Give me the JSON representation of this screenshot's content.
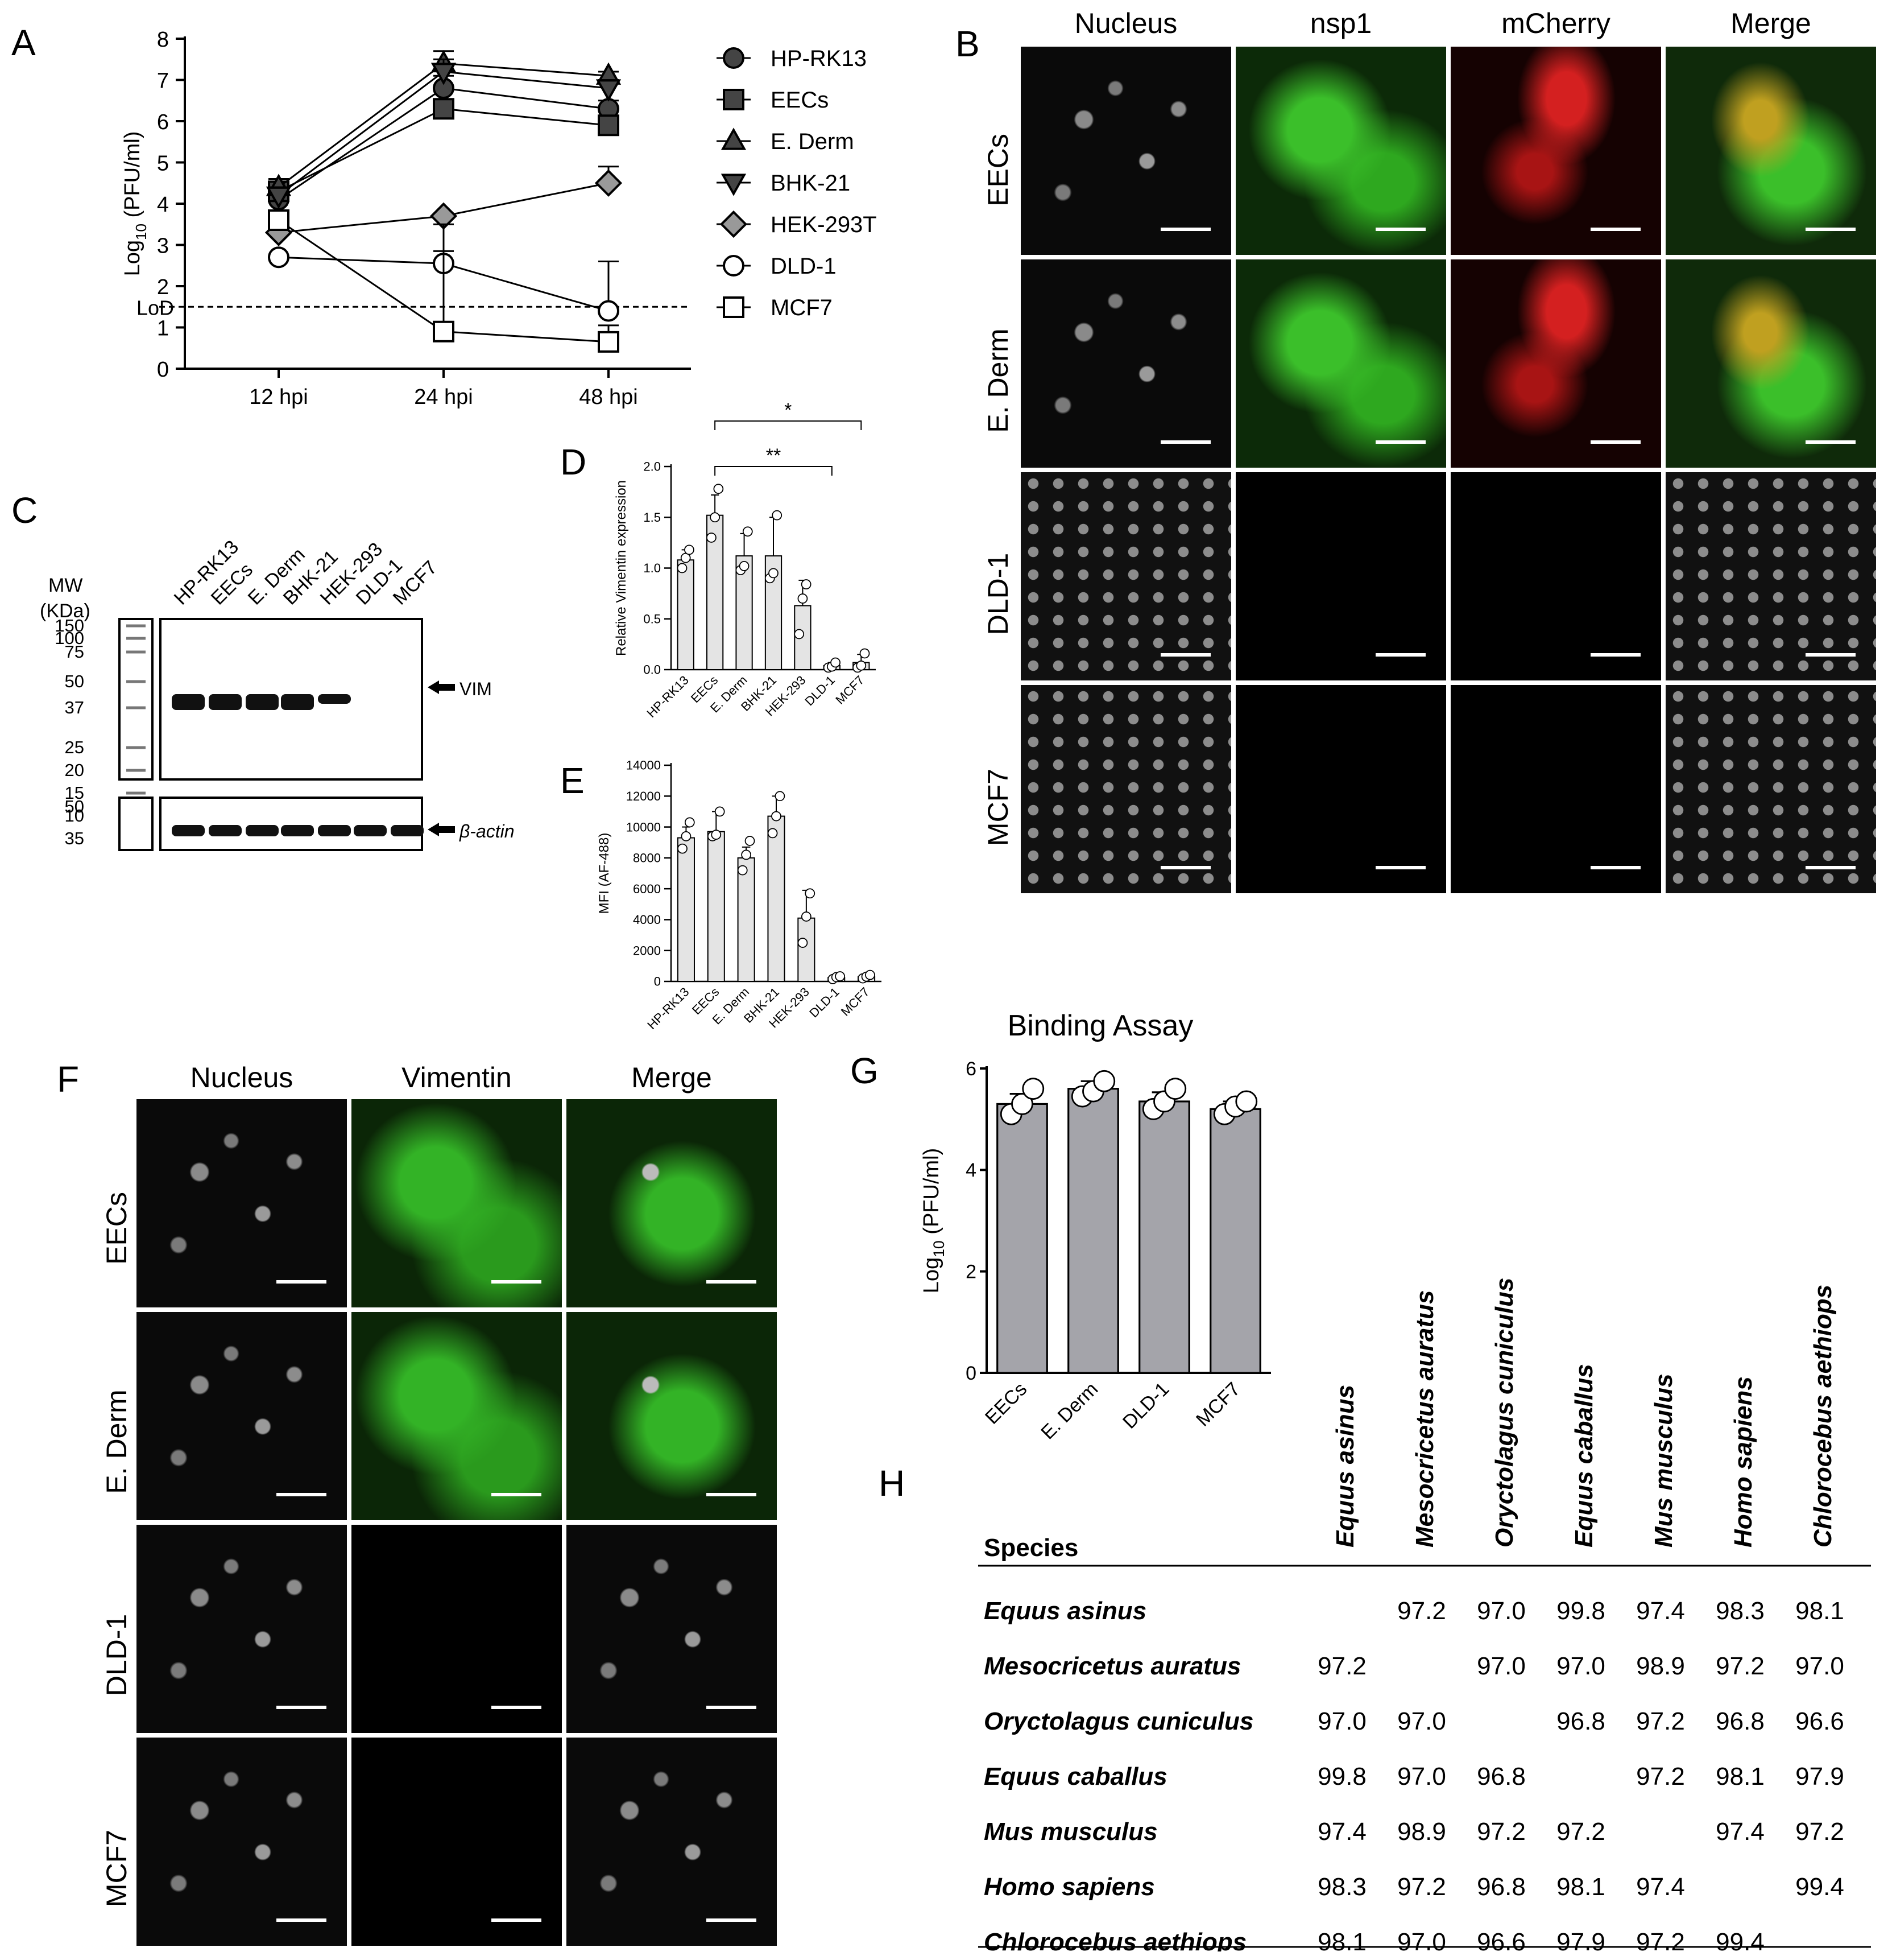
{
  "panels": {
    "A": "A",
    "B": "B",
    "C": "C",
    "D": "D",
    "E": "E",
    "F": "F",
    "G": "G",
    "H": "H"
  },
  "panelA": {
    "ylabel": "Log10 (PFU/ml)",
    "ylabel_main": "Log",
    "ylabel_sub": "10",
    "ylabel_rest": " (PFU/ml)",
    "lod_label": "LoD",
    "legend": [
      "HP-RK13",
      "EECs",
      "E. Derm",
      "BHK-21",
      "HEK-293T",
      "DLD-1",
      "MCF7"
    ]
  },
  "panelB": {
    "columns": [
      "Nucleus",
      "nsp1",
      "mCherry",
      "Merge"
    ],
    "rows": [
      "EECs",
      "E. Derm",
      "DLD-1",
      "MCF7"
    ]
  },
  "panelC": {
    "mw_title": "MW",
    "mw_unit": "(KDa)",
    "lanes": [
      "HP-RK13",
      "EECs",
      "E. Derm",
      "BHK-21",
      "HEK-293",
      "DLD-1",
      "MCF7"
    ],
    "markers_top": [
      "150",
      "100",
      "75",
      "50",
      "37",
      "25",
      "20",
      "15",
      "10"
    ],
    "markers_bottom": [
      "50",
      "35"
    ],
    "vim_label": "VIM",
    "actin_label": "β-actin"
  },
  "panelF": {
    "columns": [
      "Nucleus",
      "Vimentin",
      "Merge"
    ],
    "rows": [
      "EECs",
      "E. Derm",
      "DLD-1",
      "MCF7"
    ]
  },
  "panelH": {
    "header_label": "Species",
    "species": [
      "Equus asinus",
      "Mesocricetus auratus",
      "Oryctolagus cuniculus",
      "Equus caballus",
      "Mus musculus",
      "Homo sapiens",
      "Chlorocebus aethiops"
    ],
    "matrix": [
      [
        "",
        "97.2",
        "97.0",
        "99.8",
        "97.4",
        "98.3",
        "98.1"
      ],
      [
        "97.2",
        "",
        "97.0",
        "97.0",
        "98.9",
        "97.2",
        "97.0"
      ],
      [
        "97.0",
        "97.0",
        "",
        "96.8",
        "97.2",
        "96.8",
        "96.6"
      ],
      [
        "99.8",
        "97.0",
        "96.8",
        "",
        "97.2",
        "98.1",
        "97.9"
      ],
      [
        "97.4",
        "98.9",
        "97.2",
        "97.2",
        "",
        "97.4",
        "97.2"
      ],
      [
        "98.3",
        "97.2",
        "96.8",
        "98.1",
        "97.4",
        "",
        "99.4"
      ],
      [
        "98.1",
        "97.0",
        "96.6",
        "97.9",
        "97.2",
        "99.4",
        ""
      ]
    ]
  },
  "chart_data": [
    {
      "type": "line",
      "panel": "A",
      "x": [
        "12 hpi",
        "24 hpi",
        "48 hpi"
      ],
      "ylabel": "Log10 (PFU/ml)",
      "ylim": [
        0,
        8
      ],
      "yticks": [
        "0",
        "1",
        "2",
        "3",
        "4",
        "5",
        "6",
        "7",
        "8"
      ],
      "lod": 1.5,
      "series": [
        {
          "name": "HP-RK13",
          "marker": "circle-filled",
          "color": "#444444",
          "values": [
            4.1,
            6.8,
            6.3
          ],
          "err": [
            0.2,
            0.3,
            0.2
          ]
        },
        {
          "name": "EECs",
          "marker": "square-filled",
          "color": "#444444",
          "values": [
            4.3,
            6.3,
            5.9
          ],
          "err": [
            0.3,
            0.2,
            0.1
          ]
        },
        {
          "name": "E. Derm",
          "marker": "triangle-up-filled",
          "color": "#444444",
          "values": [
            4.4,
            7.4,
            7.1
          ],
          "err": [
            0.2,
            0.3,
            0.1
          ]
        },
        {
          "name": "BHK-21",
          "marker": "triangle-down-filled",
          "color": "#444444",
          "values": [
            4.2,
            7.2,
            6.8
          ],
          "err": [
            0.2,
            0.3,
            0.2
          ]
        },
        {
          "name": "HEK-293T",
          "marker": "diamond-filled",
          "color": "#999999",
          "values": [
            3.3,
            3.7,
            4.5
          ],
          "err": [
            0.2,
            0.0,
            0.4
          ]
        },
        {
          "name": "DLD-1",
          "marker": "circle-open",
          "color": "#ffffff",
          "values": [
            2.7,
            2.55,
            1.4
          ],
          "err": [
            0.0,
            0.3,
            1.2
          ]
        },
        {
          "name": "MCF7",
          "marker": "square-open",
          "color": "#ffffff",
          "values": [
            3.6,
            0.9,
            0.65
          ],
          "err": [
            0.0,
            2.6,
            0.4
          ]
        }
      ]
    },
    {
      "type": "bar",
      "panel": "D",
      "categories": [
        "HP-RK13",
        "EECs",
        "E. Derm",
        "BHK-21",
        "HEK-293",
        "DLD-1",
        "MCF7"
      ],
      "values": [
        1.08,
        1.52,
        1.12,
        1.12,
        0.63,
        0.04,
        0.07
      ],
      "err": [
        0.1,
        0.2,
        0.22,
        0.38,
        0.25,
        0.03,
        0.08
      ],
      "points": [
        [
          1.0,
          1.1,
          1.18
        ],
        [
          1.3,
          1.5,
          1.78
        ],
        [
          0.98,
          1.02,
          1.36
        ],
        [
          0.9,
          0.95,
          1.52
        ],
        [
          0.35,
          0.7,
          0.84
        ],
        [
          0.02,
          0.03,
          0.07
        ],
        [
          0.02,
          0.04,
          0.16
        ]
      ],
      "ylabel": "Relative Vimentin expression",
      "ylim": [
        0,
        2.0
      ],
      "yticks": [
        "0.0",
        "0.5",
        "1.0",
        "1.5",
        "2.0"
      ],
      "significance": [
        {
          "from": "EECs",
          "to": "DLD-1",
          "label": "**"
        },
        {
          "from": "EECs",
          "to": "MCF7",
          "label": "*"
        }
      ]
    },
    {
      "type": "bar",
      "panel": "E",
      "categories": [
        "HP-RK13",
        "EECs",
        "E. Derm",
        "BHK-21",
        "HEK-293",
        "DLD-1",
        "MCF7"
      ],
      "values": [
        9300,
        9700,
        8000,
        10700,
        4100,
        250,
        300
      ],
      "err": [
        700,
        1300,
        700,
        1300,
        1800,
        100,
        100
      ],
      "points": [
        [
          8600,
          9400,
          10300
        ],
        [
          9400,
          9500,
          11000
        ],
        [
          7200,
          8200,
          9100
        ],
        [
          9600,
          10700,
          12000
        ],
        [
          2500,
          4200,
          5700
        ],
        [
          150,
          280,
          330
        ],
        [
          200,
          310,
          420
        ]
      ],
      "ylabel": "MFI (AF-488)",
      "ylim": [
        0,
        14000
      ],
      "yticks": [
        "0",
        "2000",
        "4000",
        "6000",
        "8000",
        "10000",
        "12000",
        "14000"
      ]
    },
    {
      "type": "bar",
      "panel": "G",
      "title": "Binding Assay",
      "categories": [
        "EECs",
        "E. Derm",
        "DLD-1",
        "MCF7"
      ],
      "values": [
        5.3,
        5.6,
        5.35,
        5.2
      ],
      "err": [
        0.2,
        0.15,
        0.18,
        0.15
      ],
      "points": [
        [
          5.1,
          5.3,
          5.6
        ],
        [
          5.45,
          5.55,
          5.75
        ],
        [
          5.2,
          5.35,
          5.6
        ],
        [
          5.1,
          5.25,
          5.35
        ]
      ],
      "ylabel": "Log10 (PFU/ml)",
      "ylim": [
        0,
        6
      ],
      "yticks": [
        "0",
        "2",
        "4",
        "6"
      ]
    }
  ]
}
